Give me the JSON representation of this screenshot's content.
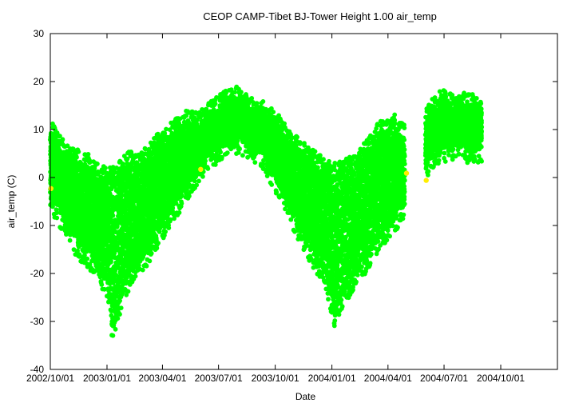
{
  "chart_data": {
    "type": "scatter",
    "title": "CEOP CAMP-Tibet BJ-Tower Height 1.00 air_temp",
    "xlabel": "Date",
    "ylabel": "air_temp (C)",
    "xlim": [
      "2002-10-01",
      "2005-01-01"
    ],
    "ylim": [
      -40,
      30
    ],
    "x_ticks": [
      "2002/10/01",
      "2003/01/01",
      "2003/04/01",
      "2003/07/01",
      "2003/10/01",
      "2004/01/01",
      "2004/04/01",
      "2004/07/01",
      "2004/10/01"
    ],
    "y_ticks": [
      30,
      20,
      10,
      0,
      -10,
      -20,
      -30,
      -40
    ],
    "grid": false,
    "colors": {
      "main_series": "#00ff00",
      "flagged_points": "#ffee00",
      "axis": "#000000"
    },
    "series": [
      {
        "color": "#00ff00",
        "envelope": [
          {
            "date": "2002-10-01",
            "min": -8,
            "max": 12
          },
          {
            "date": "2002-10-15",
            "min": -10,
            "max": 9
          },
          {
            "date": "2002-11-01",
            "min": -14,
            "max": 7
          },
          {
            "date": "2002-11-15",
            "min": -17,
            "max": 6
          },
          {
            "date": "2002-12-01",
            "min": -19,
            "max": 5
          },
          {
            "date": "2002-12-15",
            "min": -21,
            "max": 3
          },
          {
            "date": "2003-01-01",
            "min": -25,
            "max": 2
          },
          {
            "date": "2003-01-10",
            "min": -34,
            "max": 3
          },
          {
            "date": "2003-01-25",
            "min": -27,
            "max": 4
          },
          {
            "date": "2003-02-10",
            "min": -22,
            "max": 6
          },
          {
            "date": "2003-02-25",
            "min": -20,
            "max": 5
          },
          {
            "date": "2003-03-15",
            "min": -17,
            "max": 8
          },
          {
            "date": "2003-04-01",
            "min": -13,
            "max": 10
          },
          {
            "date": "2003-04-20",
            "min": -9,
            "max": 12
          },
          {
            "date": "2003-05-10",
            "min": -5,
            "max": 14
          },
          {
            "date": "2003-06-01",
            "min": -1,
            "max": 14
          },
          {
            "date": "2003-06-20",
            "min": 2,
            "max": 16
          },
          {
            "date": "2003-07-10",
            "min": 4,
            "max": 18
          },
          {
            "date": "2003-08-01",
            "min": 5,
            "max": 19
          },
          {
            "date": "2003-08-20",
            "min": 4,
            "max": 17
          },
          {
            "date": "2003-09-10",
            "min": 2,
            "max": 16
          },
          {
            "date": "2003-10-01",
            "min": -3,
            "max": 14
          },
          {
            "date": "2003-10-20",
            "min": -8,
            "max": 11
          },
          {
            "date": "2003-11-10",
            "min": -14,
            "max": 8
          },
          {
            "date": "2003-12-01",
            "min": -19,
            "max": 6
          },
          {
            "date": "2003-12-20",
            "min": -22,
            "max": 4
          },
          {
            "date": "2004-01-05",
            "min": -31,
            "max": 3
          },
          {
            "date": "2004-01-20",
            "min": -27,
            "max": 4
          },
          {
            "date": "2004-02-10",
            "min": -23,
            "max": 5
          },
          {
            "date": "2004-03-01",
            "min": -19,
            "max": 9
          },
          {
            "date": "2004-03-20",
            "min": -15,
            "max": 12
          },
          {
            "date": "2004-04-10",
            "min": -12,
            "max": 13
          },
          {
            "date": "2004-04-28",
            "min": -8,
            "max": 11
          }
        ]
      },
      {
        "color": "#00ff00",
        "envelope": [
          {
            "date": "2004-06-01",
            "min": -1,
            "max": 14
          },
          {
            "date": "2004-06-15",
            "min": 2,
            "max": 17
          },
          {
            "date": "2004-07-01",
            "min": 3,
            "max": 19
          },
          {
            "date": "2004-07-20",
            "min": 4,
            "max": 17
          },
          {
            "date": "2004-08-10",
            "min": 3,
            "max": 18
          },
          {
            "date": "2004-08-31",
            "min": 3,
            "max": 16
          }
        ]
      },
      {
        "color": "#ffee00",
        "points": [
          {
            "date": "2002-10-02",
            "value": -2.3
          },
          {
            "date": "2003-06-02",
            "value": 1.7
          },
          {
            "date": "2004-05-01",
            "value": 0.9
          },
          {
            "date": "2004-06-02",
            "value": -0.6
          }
        ]
      }
    ]
  }
}
